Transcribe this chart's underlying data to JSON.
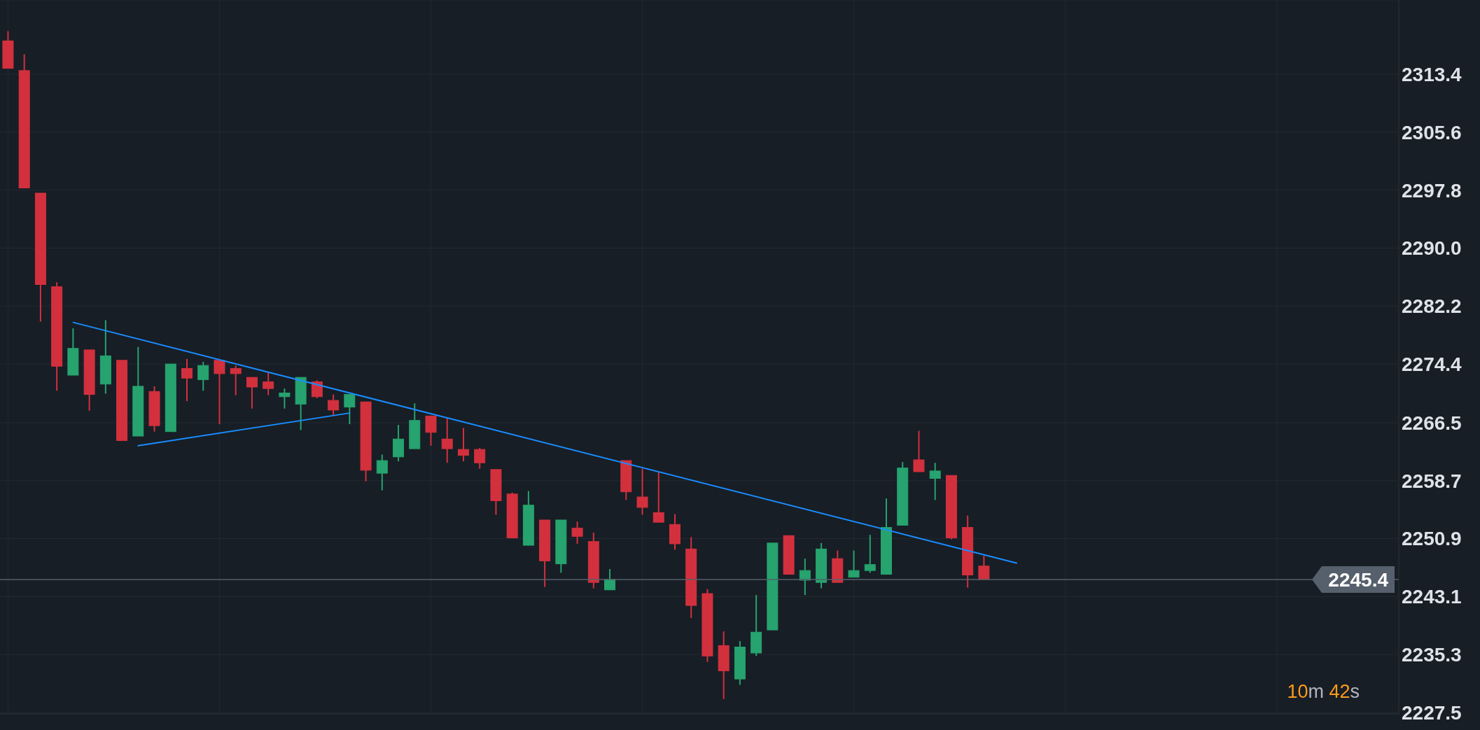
{
  "chart_data": {
    "type": "candlestick",
    "categories": [
      null,
      null,
      null,
      null,
      null,
      null,
      null,
      null,
      null,
      null,
      null,
      null,
      null,
      null,
      null,
      null,
      null,
      null,
      null,
      null,
      null,
      null,
      null,
      null,
      null,
      null,
      null,
      null,
      null,
      null,
      null,
      null,
      null,
      null,
      null,
      null,
      null,
      null,
      null,
      null,
      null,
      null,
      null,
      null,
      null,
      null,
      null,
      null,
      null,
      null,
      null,
      null,
      null,
      null,
      null,
      null,
      null,
      null,
      null,
      null,
      null,
      null,
      null,
      null,
      null,
      null,
      null,
      null,
      null,
      null,
      null,
      null,
      null,
      null,
      null,
      null,
      null,
      null,
      null,
      null,
      null,
      null,
      null,
      null,
      null,
      null
    ],
    "ohlc": [
      [
        2317.9,
        2319.2,
        2314.2,
        2314.2
      ],
      [
        2313.9,
        2316.1,
        2298.1,
        2298.1
      ],
      [
        2297.4,
        2297.4,
        2280.1,
        2285.1
      ],
      [
        2284.8,
        2285.4,
        2270.8,
        2274.1
      ],
      [
        2272.9,
        2279.2,
        2272.9,
        2276.5
      ],
      [
        2276.3,
        2276.3,
        2268.1,
        2270.3
      ],
      [
        2271.7,
        2280.3,
        2270.4,
        2275.5
      ],
      [
        2274.9,
        2274.9,
        2264.1,
        2264.1
      ],
      [
        2264.7,
        2276.7,
        2264.7,
        2271.4
      ],
      [
        2270.7,
        2271.4,
        2265.3,
        2266.1
      ],
      [
        2265.3,
        2274.4,
        2265.3,
        2274.4
      ],
      [
        2273.8,
        2275.1,
        2269.4,
        2272.5
      ],
      [
        2272.3,
        2274.7,
        2270.8,
        2274.2
      ],
      [
        2274.9,
        2274.9,
        2266.3,
        2273.1
      ],
      [
        2273.8,
        2274.2,
        2270.2,
        2273.1
      ],
      [
        2272.6,
        2272.6,
        2268.4,
        2271.3
      ],
      [
        2272.0,
        2273.2,
        2270.2,
        2271.1
      ],
      [
        2270.0,
        2271.1,
        2268.4,
        2270.5
      ],
      [
        2269.0,
        2272.6,
        2265.5,
        2272.6
      ],
      [
        2272.0,
        2272.2,
        2269.8,
        2270.0
      ],
      [
        2269.5,
        2270.3,
        2267.5,
        2268.2
      ],
      [
        2268.6,
        2270.3,
        2266.3,
        2270.3
      ],
      [
        2269.3,
        2269.3,
        2258.6,
        2260.1
      ],
      [
        2259.7,
        2262.2,
        2257.4,
        2261.4
      ],
      [
        2261.9,
        2266.2,
        2261.3,
        2264.3
      ],
      [
        2263.0,
        2269.1,
        2263.0,
        2266.8
      ],
      [
        2267.4,
        2267.4,
        2263.4,
        2265.2
      ],
      [
        2264.3,
        2267.2,
        2261.1,
        2263.0
      ],
      [
        2262.9,
        2265.8,
        2261.3,
        2262.1
      ],
      [
        2262.9,
        2263.1,
        2260.3,
        2261.1
      ],
      [
        2260.2,
        2260.2,
        2254.1,
        2256.0
      ],
      [
        2256.9,
        2257.1,
        2251.0,
        2251.0
      ],
      [
        2250.0,
        2257.3,
        2250.0,
        2255.4
      ],
      [
        2253.4,
        2253.4,
        2244.4,
        2247.9
      ],
      [
        2247.5,
        2253.4,
        2246.3,
        2253.4
      ],
      [
        2252.3,
        2253.2,
        2250.2,
        2251.2
      ],
      [
        2250.5,
        2251.7,
        2244.2,
        2245.0
      ],
      [
        2244.0,
        2246.8,
        2244.0,
        2245.4
      ],
      [
        2261.4,
        2261.4,
        2256.1,
        2257.2
      ],
      [
        2256.5,
        2260.3,
        2254.1,
        2255.1
      ],
      [
        2254.4,
        2259.8,
        2253.1,
        2253.1
      ],
      [
        2252.8,
        2254.2,
        2249.4,
        2250.2
      ],
      [
        2249.5,
        2251.1,
        2240.2,
        2241.9
      ],
      [
        2243.5,
        2244.1,
        2234.3,
        2235.1
      ],
      [
        2236.5,
        2238.4,
        2229.3,
        2233.1
      ],
      [
        2232.0,
        2237.1,
        2231.2,
        2236.3
      ],
      [
        2235.5,
        2243.3,
        2235.1,
        2238.3
      ],
      [
        2238.6,
        2250.3,
        2238.6,
        2250.3
      ],
      [
        2251.3,
        2251.3,
        2246.1,
        2246.1
      ],
      [
        2245.3,
        2248.2,
        2243.3,
        2246.6
      ],
      [
        2245.0,
        2250.3,
        2244.2,
        2249.5
      ],
      [
        2248.2,
        2249.3,
        2245.0,
        2245.0
      ],
      [
        2245.7,
        2249.3,
        2245.7,
        2246.6
      ],
      [
        2246.6,
        2251.4,
        2246.3,
        2247.4
      ],
      [
        2246.1,
        2256.3,
        2246.1,
        2252.4
      ],
      [
        2252.7,
        2261.2,
        2252.7,
        2260.4
      ],
      [
        2261.5,
        2265.4,
        2259.9,
        2259.9
      ],
      [
        2259.0,
        2261.1,
        2256.1,
        2260.0
      ],
      [
        2259.4,
        2259.4,
        2250.8,
        2251.0
      ],
      [
        2252.4,
        2254.0,
        2244.3,
        2246.0
      ],
      [
        2247.2,
        2248.6,
        2245.4,
        2245.4
      ],
      null,
      null,
      null,
      null,
      null,
      null,
      null,
      null,
      null,
      null,
      null,
      null,
      null,
      null,
      null,
      null,
      null,
      null,
      null,
      null,
      null,
      null,
      null,
      null,
      null
    ],
    "colors": [
      "#d3303e",
      "#d3303e",
      "#d3303e",
      "#d3303e",
      "#26a36e",
      "#d3303e",
      "#26a36e",
      "#d3303e",
      "#26a36e",
      "#d3303e",
      "#26a36e",
      "#d3303e",
      "#26a36e",
      "#d3303e",
      "#d3303e",
      "#d3303e",
      "#d3303e",
      "#26a36e",
      "#26a36e",
      "#d3303e",
      "#d3303e",
      "#26a36e",
      "#d3303e",
      "#26a36e",
      "#26a36e",
      "#26a36e",
      "#d3303e",
      "#d3303e",
      "#d3303e",
      "#d3303e",
      "#d3303e",
      "#d3303e",
      "#26a36e",
      "#d3303e",
      "#26a36e",
      "#d3303e",
      "#d3303e",
      "#26a36e",
      "#d3303e",
      "#d3303e",
      "#d3303e",
      "#d3303e",
      "#d3303e",
      "#d3303e",
      "#d3303e",
      "#26a36e",
      "#26a36e",
      "#26a36e",
      "#d3303e",
      "#26a36e",
      "#26a36e",
      "#d3303e",
      "#26a36e",
      "#26a36e",
      "#26a36e",
      "#26a36e",
      "#d3303e",
      "#26a36e",
      "#d3303e",
      "#d3303e",
      "#d3303e",
      null,
      null,
      null,
      null,
      null,
      null,
      null,
      null,
      null,
      null,
      null,
      null,
      null,
      null,
      null,
      null,
      null,
      null,
      null,
      null,
      null,
      null,
      null,
      null,
      null
    ],
    "series": [
      {
        "type": "line",
        "color": "#1a8cff",
        "values": [
          null,
          null,
          null,
          null,
          2280.0,
          null,
          null,
          null,
          null,
          null,
          null,
          null,
          null,
          null,
          null,
          null,
          null,
          null,
          null,
          null,
          null,
          null,
          null,
          null,
          null,
          null,
          null,
          null,
          null,
          null,
          null,
          null,
          null,
          null,
          null,
          null,
          null,
          null,
          null,
          null,
          null,
          null,
          null,
          null,
          null,
          null,
          null,
          null,
          null,
          null,
          null,
          null,
          null,
          null,
          null,
          null,
          null,
          null,
          null,
          null,
          null,
          null,
          2247.6,
          null,
          null,
          null,
          null,
          null,
          null,
          null,
          null,
          null,
          null,
          null,
          null,
          null,
          null,
          null,
          null,
          null,
          null,
          null,
          null,
          null,
          null,
          null
        ]
      },
      {
        "type": "line",
        "color": "#1a8cff",
        "values": [
          null,
          null,
          null,
          null,
          null,
          null,
          null,
          null,
          2263.4,
          null,
          null,
          null,
          null,
          null,
          null,
          null,
          null,
          null,
          null,
          null,
          null,
          2267.8,
          null,
          null,
          null,
          null,
          null,
          null,
          null,
          null,
          null,
          null,
          null,
          null,
          null,
          null,
          null,
          null,
          null,
          null,
          null,
          null,
          null,
          null,
          null,
          null,
          null,
          null,
          null,
          null,
          null,
          null,
          null,
          null,
          null,
          null,
          null,
          null,
          null,
          null,
          null,
          null,
          null,
          null,
          null,
          null,
          null,
          null,
          null,
          null,
          null,
          null,
          null,
          null,
          null,
          null,
          null,
          null,
          null,
          null,
          null,
          null,
          null,
          null,
          null,
          null
        ]
      }
    ],
    "ylim": [
      2227.3,
      2323.4
    ],
    "yticks": [
      2227.5,
      2235.3,
      2243.1,
      2250.9,
      2258.7,
      2266.5,
      2274.4,
      2282.2,
      {
        "value": 2290,
        "label": "2290.0"
      },
      2297.8,
      2305.6,
      2313.4
    ],
    "grid": true,
    "tick_labels": "y",
    "ref_lines": [
      {
        "axis": "y",
        "value": 2245.4,
        "label": "2245.4",
        "color": "#56606c"
      }
    ],
    "annotations": [
      "10m 42s"
    ]
  }
}
